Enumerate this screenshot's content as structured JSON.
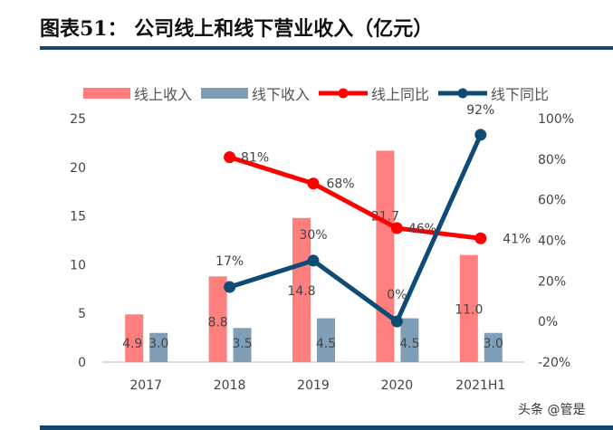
{
  "title": "图表51：  公司线上和线下营业收入（亿元）",
  "watermark": "头条 @管是",
  "chart_data": {
    "type": "bar+line",
    "categories": [
      "2017",
      "2018",
      "2019",
      "2020",
      "2021H1"
    ],
    "series": [
      {
        "name": "线上收入",
        "type": "bar",
        "axis": "left",
        "color": "#ff7f7f",
        "values": [
          4.9,
          8.8,
          14.8,
          21.7,
          11.0
        ],
        "labels": [
          "4.9",
          "8.8",
          "14.8",
          "21.7",
          "11.0"
        ]
      },
      {
        "name": "线下收入",
        "type": "bar",
        "axis": "left",
        "color": "#7f9fb8",
        "values": [
          3.0,
          3.5,
          4.5,
          4.5,
          3.0
        ],
        "labels": [
          "3.0",
          "3.5",
          "4.5",
          "4.5",
          "3.0"
        ]
      },
      {
        "name": "线上同比",
        "type": "line",
        "axis": "right",
        "color": "#ff0000",
        "values": [
          null,
          81,
          68,
          46,
          41
        ],
        "labels": [
          null,
          "81%",
          "68%",
          "46%",
          "41%"
        ]
      },
      {
        "name": "线下同比",
        "type": "line",
        "axis": "right",
        "color": "#0f4c75",
        "values": [
          null,
          17,
          30,
          0,
          92
        ],
        "labels": [
          null,
          "17%",
          "30%",
          "0%",
          "92%"
        ]
      }
    ],
    "left_axis": {
      "ylim": [
        0,
        25
      ],
      "ticks": [
        "0",
        "5",
        "10",
        "15",
        "20",
        "25"
      ]
    },
    "right_axis": {
      "ylim": [
        -20,
        100
      ],
      "ticks": [
        "-20%",
        "0%",
        "20%",
        "40%",
        "60%",
        "80%",
        "100%"
      ]
    },
    "legend": "top",
    "grid": false
  }
}
